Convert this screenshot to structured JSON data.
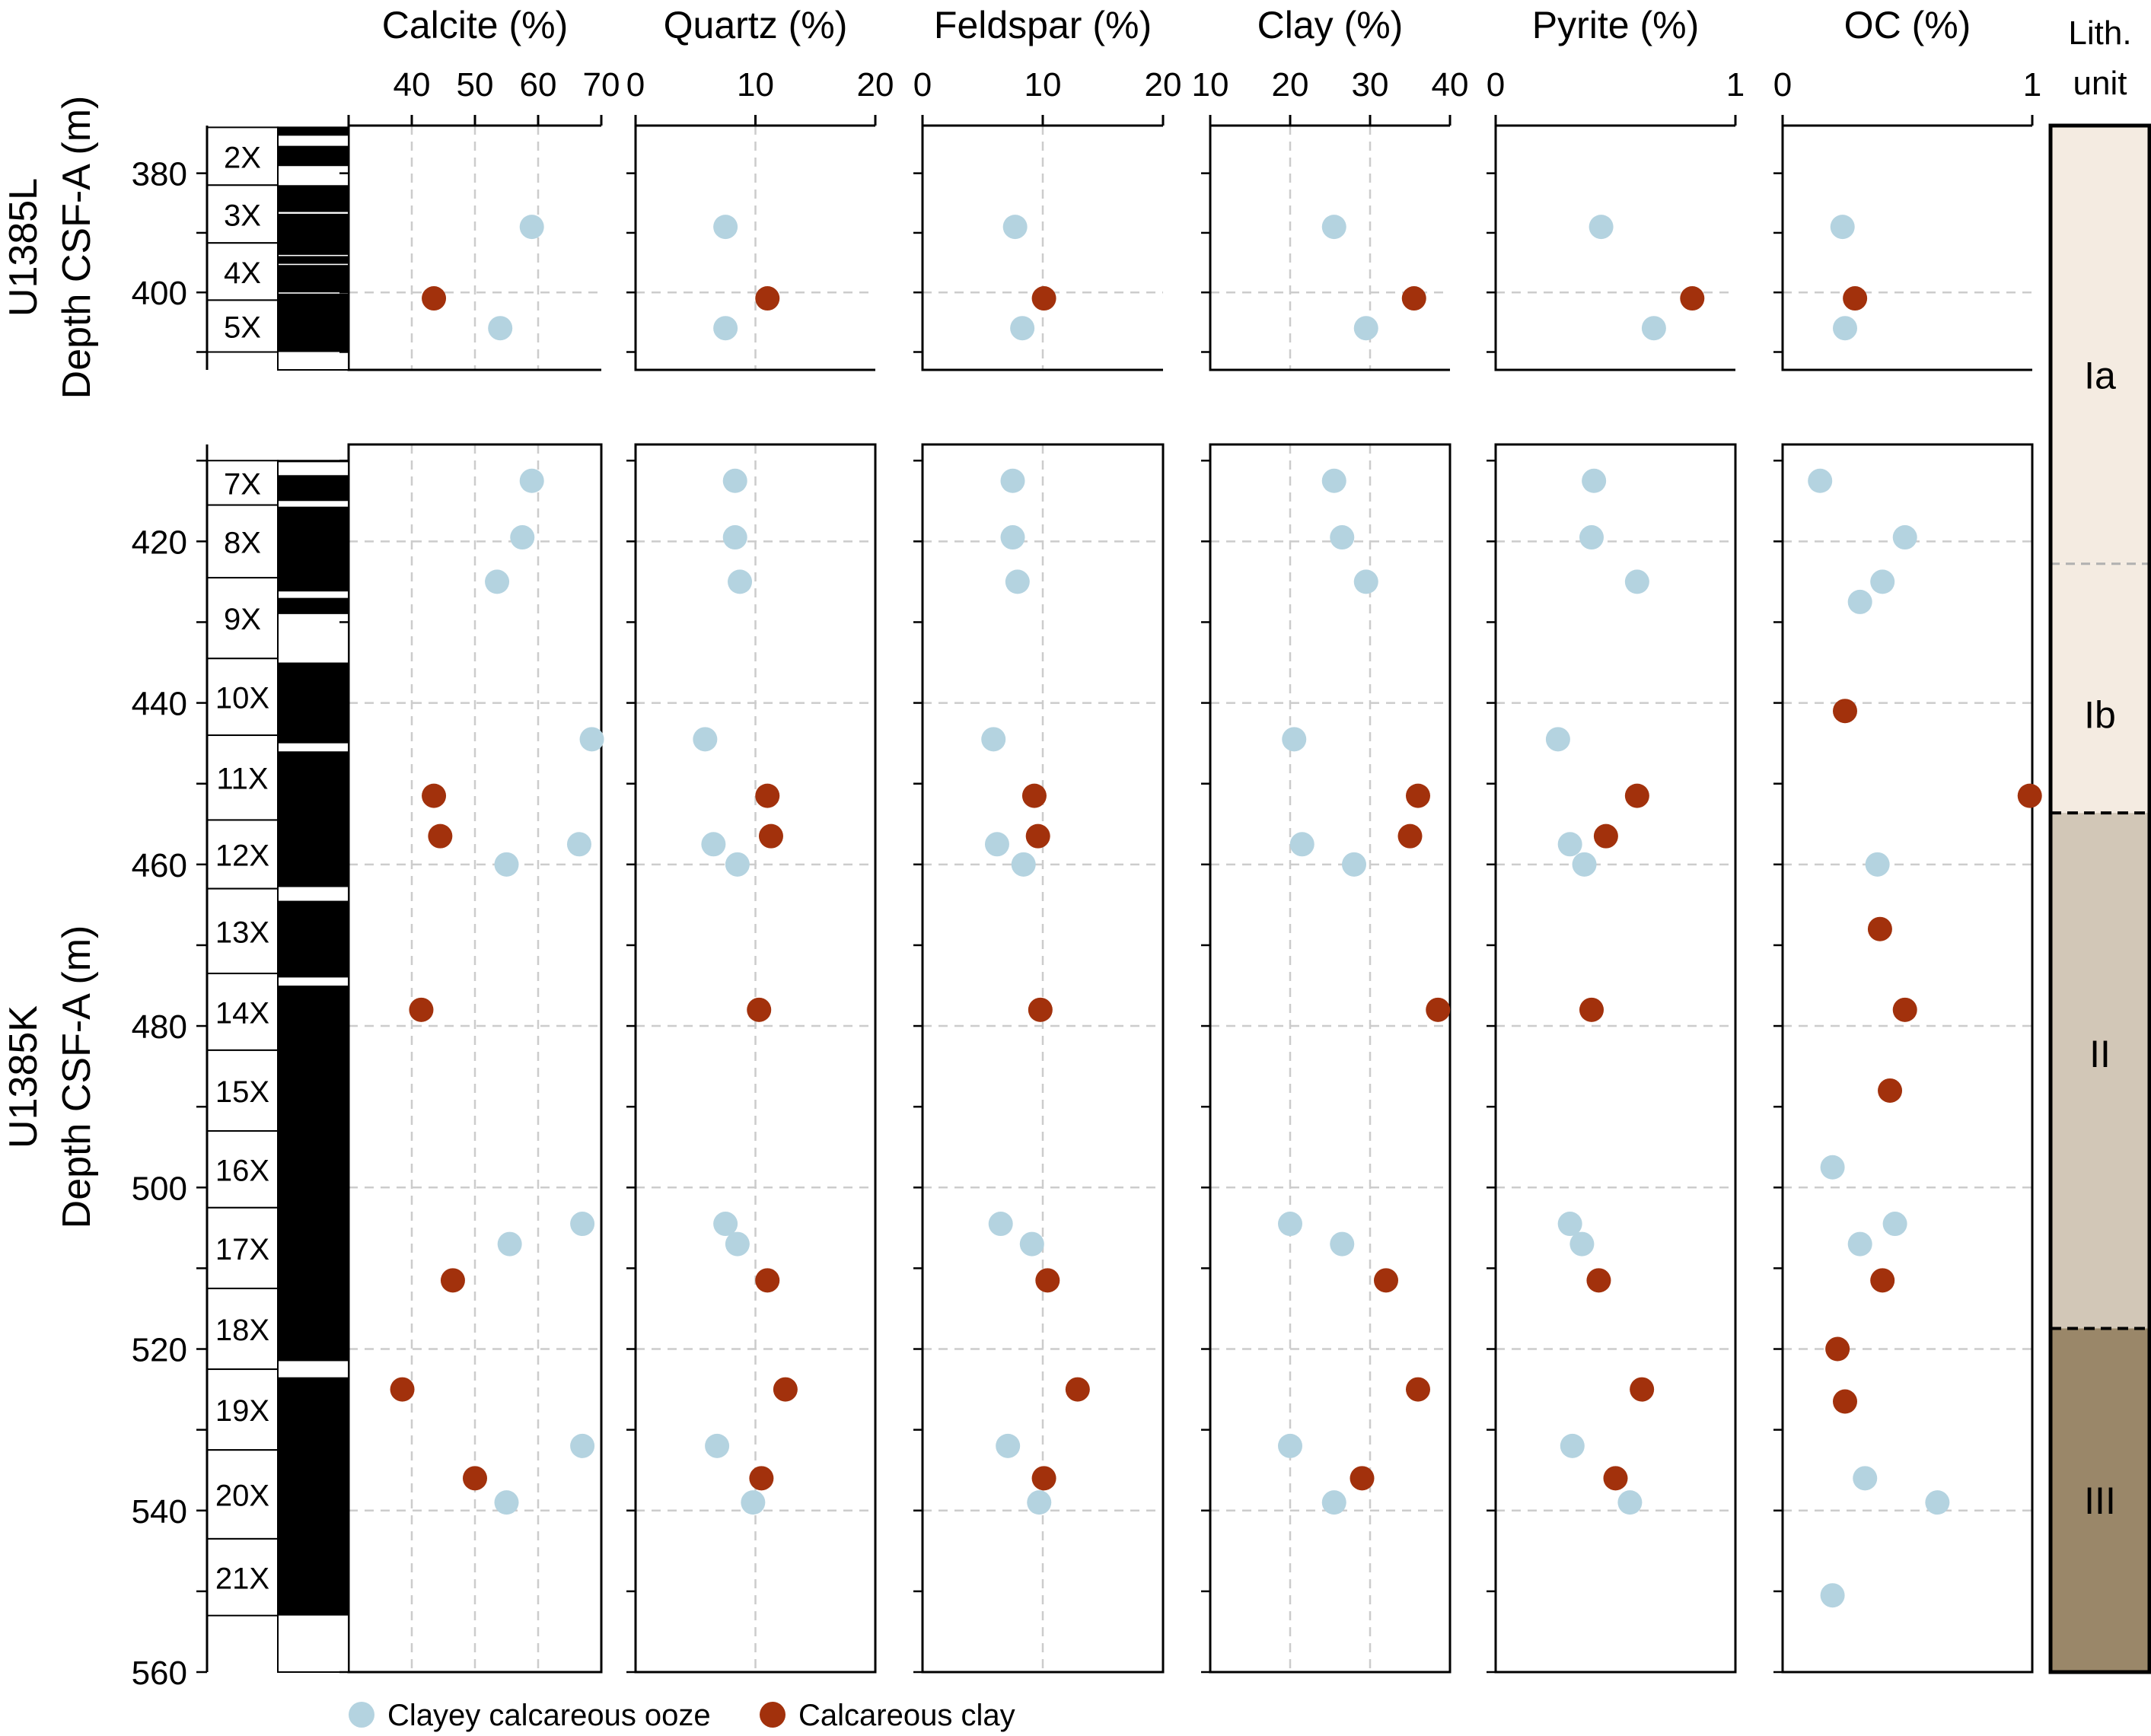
{
  "chart_data": {
    "type": "scatter",
    "legend_placement": "bottom",
    "legend": [
      {
        "name": "Clayey calcareous ooze",
        "color": "#b4d3e0"
      },
      {
        "name": "Calcareous clay",
        "color": "#a2310c"
      }
    ],
    "y_axis": {
      "panel_top": {
        "label_lines": [
          "U1385L",
          "Depth CSF-A (m)"
        ],
        "range": [
          372,
          413
        ],
        "ticks": [
          380,
          390,
          400,
          410
        ],
        "tick_labels": [
          "380",
          "400"
        ],
        "tick_label_values": [
          380,
          400
        ]
      },
      "panel_bottom": {
        "label_lines": [
          "U1385K",
          "Depth CSF-A (m)"
        ],
        "range": [
          408,
          560
        ],
        "ticks": [
          410,
          420,
          430,
          440,
          450,
          460,
          470,
          480,
          490,
          500,
          510,
          520,
          530,
          540,
          550,
          560
        ],
        "tick_labels": [
          "420",
          "440",
          "460",
          "480",
          "500",
          "520",
          "540",
          "560"
        ],
        "tick_label_values": [
          420,
          440,
          460,
          480,
          500,
          520,
          540,
          560
        ]
      }
    },
    "cores": {
      "top": [
        {
          "label": "2X",
          "top": 372.3,
          "bottom": 382.0
        },
        {
          "label": "3X",
          "top": 382.0,
          "bottom": 391.7
        },
        {
          "label": "4X",
          "top": 391.7,
          "bottom": 401.3
        },
        {
          "label": "5X",
          "top": 401.3,
          "bottom": 410.0
        }
      ],
      "top_recovery": [
        [
          372.3,
          373.7
        ],
        [
          375.4,
          378.8
        ],
        [
          382.0,
          386.5
        ],
        [
          386.8,
          393.7
        ],
        [
          393.9,
          395.2
        ],
        [
          395.4,
          400.0
        ],
        [
          400.2,
          410.0
        ]
      ],
      "bottom": [
        {
          "label": "7X",
          "top": 410.0,
          "bottom": 415.5
        },
        {
          "label": "8X",
          "top": 415.5,
          "bottom": 424.5
        },
        {
          "label": "9X",
          "top": 424.5,
          "bottom": 434.5
        },
        {
          "label": "10X",
          "top": 434.5,
          "bottom": 444.0
        },
        {
          "label": "11X",
          "top": 444.0,
          "bottom": 454.5
        },
        {
          "label": "12X",
          "top": 454.5,
          "bottom": 463.0
        },
        {
          "label": "13X",
          "top": 463.0,
          "bottom": 473.5
        },
        {
          "label": "14X",
          "top": 473.5,
          "bottom": 483.0
        },
        {
          "label": "15X",
          "top": 483.0,
          "bottom": 493.0
        },
        {
          "label": "16X",
          "top": 493.0,
          "bottom": 502.5
        },
        {
          "label": "17X",
          "top": 502.5,
          "bottom": 512.5
        },
        {
          "label": "18X",
          "top": 512.5,
          "bottom": 522.5
        },
        {
          "label": "19X",
          "top": 522.5,
          "bottom": 532.5
        },
        {
          "label": "20X",
          "top": 532.5,
          "bottom": 543.5
        },
        {
          "label": "21X",
          "top": 543.5,
          "bottom": 553.0
        }
      ],
      "bottom_recovery": [
        [
          410.0,
          410.2
        ],
        [
          411.8,
          415.0
        ],
        [
          415.7,
          426.2
        ],
        [
          427.0,
          429.0
        ],
        [
          435.0,
          445.0
        ],
        [
          446.0,
          462.8
        ],
        [
          464.5,
          474.0
        ],
        [
          475.0,
          521.5
        ],
        [
          523.5,
          553.0
        ]
      ]
    },
    "panels": [
      {
        "title": "Calcite (%)",
        "xlim": [
          30,
          70
        ],
        "ticks": [
          30,
          40,
          50,
          60,
          70
        ],
        "tick_labels": [
          "40",
          "50",
          "60",
          "70"
        ],
        "tick_label_values": [
          40,
          50,
          60,
          70
        ],
        "grid_x": [
          40,
          50,
          60
        ],
        "series": [
          {
            "name": "Clayey calcareous ooze",
            "top": [
              [
                389,
                59.0
              ],
              [
                406,
                54.0
              ]
            ],
            "bottom": [
              [
                412.5,
                59.0
              ],
              [
                419.5,
                57.5
              ],
              [
                425,
                53.5
              ],
              [
                444.5,
                68.5
              ],
              [
                457.5,
                66.5
              ],
              [
                460,
                55.0
              ],
              [
                504.5,
                67.0
              ],
              [
                507,
                55.5
              ],
              [
                532,
                67.0
              ],
              [
                539,
                55.0
              ]
            ]
          },
          {
            "name": "Calcareous clay",
            "top": [
              [
                401,
                43.5
              ]
            ],
            "bottom": [
              [
                451.5,
                43.5
              ],
              [
                456.5,
                44.5
              ],
              [
                478,
                41.5
              ],
              [
                511.5,
                46.5
              ],
              [
                525,
                38.5
              ],
              [
                536,
                50.0
              ]
            ]
          }
        ]
      },
      {
        "title": "Quartz (%)",
        "xlim": [
          0,
          20
        ],
        "ticks": [
          0,
          10,
          20
        ],
        "tick_labels": [
          "0",
          "10",
          "20"
        ],
        "tick_label_values": [
          0,
          10,
          20
        ],
        "grid_x": [
          10
        ],
        "series": [
          {
            "name": "Clayey calcareous ooze",
            "top": [
              [
                389,
                7.5
              ],
              [
                406,
                7.5
              ]
            ],
            "bottom": [
              [
                412.5,
                8.3
              ],
              [
                419.5,
                8.3
              ],
              [
                425,
                8.7
              ],
              [
                444.5,
                5.8
              ],
              [
                457.5,
                6.5
              ],
              [
                460,
                8.5
              ],
              [
                504.5,
                7.5
              ],
              [
                507,
                8.5
              ],
              [
                532,
                6.8
              ],
              [
                539,
                9.8
              ]
            ]
          },
          {
            "name": "Calcareous clay",
            "top": [
              [
                401,
                11.0
              ]
            ],
            "bottom": [
              [
                451.5,
                11.0
              ],
              [
                456.5,
                11.3
              ],
              [
                478,
                10.3
              ],
              [
                511.5,
                11.0
              ],
              [
                525,
                12.5
              ],
              [
                536,
                10.5
              ]
            ]
          }
        ]
      },
      {
        "title": "Feldspar (%)",
        "xlim": [
          0,
          20
        ],
        "ticks": [
          0,
          10,
          20
        ],
        "tick_labels": [
          "0",
          "10",
          "20"
        ],
        "tick_label_values": [
          0,
          10,
          20
        ],
        "grid_x": [
          10
        ],
        "series": [
          {
            "name": "Clayey calcareous ooze",
            "top": [
              [
                389,
                7.7
              ],
              [
                406,
                8.3
              ]
            ],
            "bottom": [
              [
                412.5,
                7.5
              ],
              [
                419.5,
                7.5
              ],
              [
                425,
                7.9
              ],
              [
                444.5,
                5.9
              ],
              [
                457.5,
                6.2
              ],
              [
                460,
                8.4
              ],
              [
                504.5,
                6.5
              ],
              [
                507,
                9.1
              ],
              [
                532,
                7.1
              ],
              [
                539,
                9.7
              ]
            ]
          },
          {
            "name": "Calcareous clay",
            "top": [
              [
                401,
                10.1
              ]
            ],
            "bottom": [
              [
                451.5,
                9.3
              ],
              [
                456.5,
                9.6
              ],
              [
                478,
                9.8
              ],
              [
                511.5,
                10.4
              ],
              [
                525,
                12.9
              ],
              [
                536,
                10.1
              ]
            ]
          }
        ]
      },
      {
        "title": "Clay (%)",
        "xlim": [
          10,
          40
        ],
        "ticks": [
          10,
          20,
          30,
          40
        ],
        "tick_labels": [
          "10",
          "20",
          "30",
          "40"
        ],
        "tick_label_values": [
          10,
          20,
          30,
          40
        ],
        "grid_x": [
          20,
          30
        ],
        "series": [
          {
            "name": "Clayey calcareous ooze",
            "top": [
              [
                389,
                25.5
              ],
              [
                406,
                29.5
              ]
            ],
            "bottom": [
              [
                412.5,
                25.5
              ],
              [
                419.5,
                26.5
              ],
              [
                425,
                29.5
              ],
              [
                444.5,
                20.5
              ],
              [
                457.5,
                21.5
              ],
              [
                460,
                28.0
              ],
              [
                504.5,
                20.0
              ],
              [
                507,
                26.5
              ],
              [
                532,
                20.0
              ],
              [
                539,
                25.5
              ]
            ]
          },
          {
            "name": "Calcareous clay",
            "top": [
              [
                401,
                35.5
              ]
            ],
            "bottom": [
              [
                451.5,
                36.0
              ],
              [
                456.5,
                35.0
              ],
              [
                478,
                38.5
              ],
              [
                511.5,
                32.0
              ],
              [
                525,
                36.0
              ],
              [
                536,
                29.0
              ]
            ]
          }
        ]
      },
      {
        "title": "Pyrite (%)",
        "xlim": [
          0,
          1
        ],
        "ticks": [
          0,
          1
        ],
        "tick_labels": [
          "0",
          "1"
        ],
        "tick_label_values": [
          0,
          1
        ],
        "grid_x": [],
        "series": [
          {
            "name": "Clayey calcareous ooze",
            "top": [
              [
                389,
                0.44
              ],
              [
                406,
                0.66
              ]
            ],
            "bottom": [
              [
                412.5,
                0.41
              ],
              [
                419.5,
                0.4
              ],
              [
                425,
                0.59
              ],
              [
                444.5,
                0.26
              ],
              [
                457.5,
                0.31
              ],
              [
                460,
                0.37
              ],
              [
                504.5,
                0.31
              ],
              [
                507,
                0.36
              ],
              [
                532,
                0.32
              ],
              [
                539,
                0.56
              ]
            ]
          },
          {
            "name": "Calcareous clay",
            "top": [
              [
                401,
                0.82
              ]
            ],
            "bottom": [
              [
                451.5,
                0.59
              ],
              [
                456.5,
                0.46
              ],
              [
                478,
                0.4
              ],
              [
                511.5,
                0.43
              ],
              [
                525,
                0.61
              ],
              [
                536,
                0.5
              ]
            ]
          }
        ]
      },
      {
        "title": "OC (%)",
        "xlim": [
          0,
          1
        ],
        "ticks": [
          0,
          1
        ],
        "tick_labels": [
          "0",
          "1"
        ],
        "tick_label_values": [
          0,
          1
        ],
        "grid_x": [],
        "series": [
          {
            "name": "Clayey calcareous ooze",
            "top": [
              [
                389,
                0.24
              ],
              [
                406,
                0.25
              ]
            ],
            "bottom": [
              [
                412.5,
                0.15
              ],
              [
                419.5,
                0.49
              ],
              [
                425,
                0.4
              ],
              [
                427.5,
                0.31
              ],
              [
                460,
                0.38
              ],
              [
                497.5,
                0.2
              ],
              [
                504.5,
                0.45
              ],
              [
                507,
                0.31
              ],
              [
                536,
                0.33
              ],
              [
                539,
                0.62
              ],
              [
                550.5,
                0.2
              ]
            ]
          },
          {
            "name": "Calcareous clay",
            "top": [
              [
                401,
                0.29
              ]
            ],
            "bottom": [
              [
                441,
                0.25
              ],
              [
                451.5,
                0.99
              ],
              [
                468,
                0.39
              ],
              [
                478,
                0.49
              ],
              [
                488,
                0.43
              ],
              [
                511.5,
                0.4
              ],
              [
                520,
                0.22
              ],
              [
                526.5,
                0.25
              ]
            ]
          }
        ]
      }
    ],
    "lith_units": {
      "title_lines": [
        "Lith.",
        "unit"
      ],
      "range": [
        380,
        560
      ],
      "boundaries": [
        {
          "depth": 431,
          "style": "dashed-faint"
        },
        {
          "depth": 460,
          "style": "dashed"
        },
        {
          "depth": 520,
          "style": "dashed"
        }
      ],
      "units": [
        {
          "label": "Ia",
          "top": 380,
          "bottom": 431,
          "label_depth": 409,
          "color": "#f4ebe1"
        },
        {
          "label": "Ib",
          "top": 431,
          "bottom": 460,
          "label_depth": 448.5,
          "color": "#f4ebe1"
        },
        {
          "label": "II",
          "top": 460,
          "bottom": 520,
          "label_depth": 488,
          "color": "#d2c7b7"
        },
        {
          "label": "III",
          "top": 520,
          "bottom": 560,
          "label_depth": 540,
          "color": "#9a8769"
        }
      ]
    }
  }
}
